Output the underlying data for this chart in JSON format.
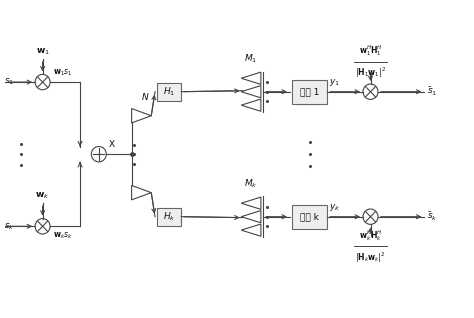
{
  "line_color": "#444444",
  "text_color": "#111111",
  "fig_width": 4.74,
  "fig_height": 3.18,
  "dpi": 100,
  "labels": {
    "w1_top": "$\\mathbf{w}_1$",
    "wk_top": "$\\mathbf{w}_k$",
    "s1": "$s_1$",
    "sk": "$s_k$",
    "w1s1": "$\\mathbf{w}_1s_1$",
    "wksk": "$\\mathbf{w}_ks_k$",
    "X": "X",
    "N": "N",
    "H1": "$H_1$",
    "Hk": "$H_k$",
    "M1": "$M_1$",
    "Mk": "$M_k$",
    "user1": "用户 1",
    "userk": "用户 k",
    "y1": "$y_1$",
    "yk": "$y_k$",
    "s1_hat": "$\\bar{s}_1$",
    "sk_hat": "$\\bar{s}_k$",
    "frac1_num": "$\\mathbf{w}_1^H\\mathbf{H}_1^H$",
    "frac1_den": "$|\\mathbf{H}_1\\mathbf{w}_1|^2$",
    "frack_num": "$\\mathbf{w}_k^H\\mathbf{H}_k^H$",
    "frack_den": "$|\\mathbf{H}_k\\mathbf{w}_k|^2$"
  }
}
